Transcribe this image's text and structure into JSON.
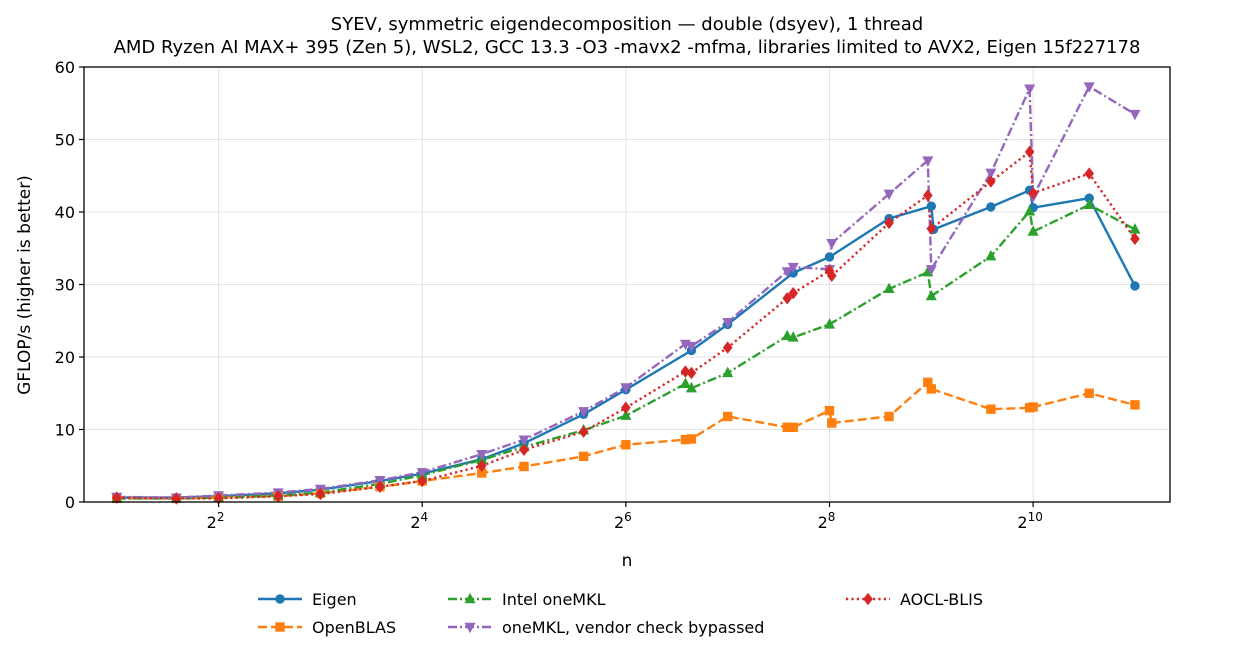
{
  "chart_data": {
    "type": "line",
    "title": "SYEV, symmetric eigendecomposition — double (dsyev), 1 thread",
    "subtitle": "AMD Ryzen AI MAX+ 395 (Zen 5), WSL2, GCC 13.3 -O3 -mavx2 -mfma, libraries limited to AVX2, Eigen 15f227178",
    "xlabel": "n",
    "ylabel": "GFLOP/s (higher is better)",
    "xscale": "log2",
    "xlim": [
      1.6,
      2600
    ],
    "ylim": [
      0,
      60
    ],
    "xticks": [
      {
        "value": 4,
        "base": "2",
        "exp": "2"
      },
      {
        "value": 16,
        "base": "2",
        "exp": "4"
      },
      {
        "value": 64,
        "base": "2",
        "exp": "6"
      },
      {
        "value": 256,
        "base": "2",
        "exp": "8"
      },
      {
        "value": 1024,
        "base": "2",
        "exp": "10"
      }
    ],
    "yticks": [
      0,
      10,
      20,
      30,
      40,
      50,
      60
    ],
    "grid": true,
    "legend_position": "below plot, 3 columns",
    "series": [
      {
        "name": "Eigen",
        "color": "#1f77b4",
        "dash": "solid",
        "marker": "circle",
        "x": [
          2,
          3,
          4,
          6,
          8,
          12,
          16,
          24,
          32,
          48,
          64,
          100,
          128,
          200,
          256,
          384,
          512,
          520,
          768,
          1000,
          1024,
          1500,
          2048
        ],
        "y": [
          0.6,
          0.6,
          0.8,
          1.2,
          1.7,
          2.9,
          3.9,
          5.9,
          8.1,
          12.1,
          15.5,
          20.9,
          24.5,
          31.6,
          33.8,
          39.1,
          40.8,
          37.6,
          40.7,
          43.0,
          40.6,
          41.9,
          29.8
        ]
      },
      {
        "name": "OpenBLAS",
        "color": "#ff7f0e",
        "dash": "dashed",
        "marker": "square",
        "x": [
          2,
          3,
          4,
          6,
          8,
          12,
          16,
          24,
          32,
          48,
          64,
          96,
          100,
          128,
          192,
          200,
          256,
          260,
          384,
          500,
          512,
          768,
          1000,
          1024,
          1500,
          2048
        ],
        "y": [
          0.5,
          0.5,
          0.6,
          0.8,
          1.2,
          2.1,
          2.9,
          4.0,
          4.9,
          6.3,
          7.9,
          8.6,
          8.7,
          11.8,
          10.3,
          10.3,
          12.6,
          10.9,
          11.8,
          16.5,
          15.6,
          12.8,
          13.0,
          13.1,
          15.0,
          13.4
        ]
      },
      {
        "name": "Intel oneMKL",
        "color": "#2ca02c",
        "dash": "dashdot",
        "marker": "triangle-up",
        "x": [
          2,
          3,
          4,
          6,
          8,
          12,
          16,
          24,
          32,
          48,
          64,
          96,
          100,
          128,
          192,
          200,
          256,
          384,
          500,
          512,
          768,
          1000,
          1024,
          1500,
          2048
        ],
        "y": [
          0.5,
          0.5,
          0.6,
          0.9,
          1.3,
          2.5,
          3.7,
          5.8,
          7.6,
          9.9,
          11.9,
          16.3,
          15.7,
          17.8,
          22.9,
          22.7,
          24.5,
          29.4,
          31.7,
          28.4,
          33.9,
          40.1,
          37.3,
          41.0,
          37.6
        ]
      },
      {
        "name": "oneMKL, vendor check bypassed",
        "color": "#9467bd",
        "dash": "dashdot",
        "marker": "triangle-down",
        "x": [
          2,
          3,
          4,
          6,
          8,
          12,
          16,
          24,
          32,
          48,
          64,
          96,
          100,
          128,
          192,
          200,
          256,
          260,
          384,
          500,
          512,
          768,
          1000,
          1024,
          1500,
          2048
        ],
        "y": [
          0.7,
          0.6,
          0.9,
          1.3,
          1.8,
          3.0,
          4.1,
          6.6,
          8.6,
          12.5,
          15.8,
          21.8,
          21.5,
          24.8,
          31.8,
          32.4,
          32.1,
          35.7,
          42.5,
          47.1,
          32.1,
          45.4,
          57.0,
          42.1,
          57.3,
          53.5
        ]
      },
      {
        "name": "AOCL-BLIS",
        "color": "#d62728",
        "dash": "dotted",
        "marker": "diamond",
        "x": [
          2,
          3,
          4,
          6,
          8,
          12,
          16,
          24,
          32,
          48,
          64,
          96,
          100,
          128,
          192,
          200,
          256,
          260,
          384,
          500,
          512,
          768,
          1000,
          1024,
          1500,
          2048
        ],
        "y": [
          0.6,
          0.5,
          0.5,
          0.8,
          1.1,
          2.1,
          2.9,
          5.0,
          7.2,
          9.7,
          13.0,
          18.0,
          17.8,
          21.3,
          28.1,
          28.8,
          31.9,
          31.2,
          38.5,
          42.3,
          37.7,
          44.2,
          48.3,
          42.6,
          45.3,
          36.3
        ]
      }
    ]
  }
}
